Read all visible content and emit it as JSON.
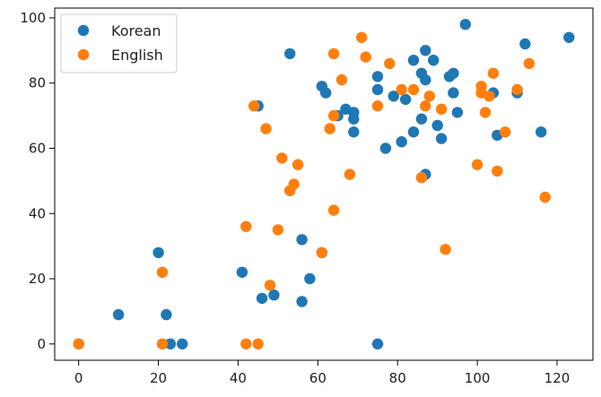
{
  "chart_data": {
    "type": "scatter",
    "title": "",
    "xlabel": "",
    "ylabel": "",
    "xlim": [
      -6,
      129
    ],
    "ylim": [
      -5,
      103
    ],
    "xticks": [
      0,
      20,
      40,
      60,
      80,
      100,
      120
    ],
    "yticks": [
      0,
      20,
      40,
      60,
      80,
      100
    ],
    "grid": false,
    "legend_position": "top-left",
    "series": [
      {
        "name": "Korean",
        "color": "#1f77b4",
        "points": [
          [
            0,
            0
          ],
          [
            10,
            9
          ],
          [
            20,
            28
          ],
          [
            22,
            9
          ],
          [
            23,
            0
          ],
          [
            26,
            0
          ],
          [
            41,
            22
          ],
          [
            45,
            73
          ],
          [
            46,
            14
          ],
          [
            49,
            15
          ],
          [
            53,
            89
          ],
          [
            56,
            32
          ],
          [
            56,
            13
          ],
          [
            58,
            20
          ],
          [
            61,
            28
          ],
          [
            61,
            79
          ],
          [
            62,
            77
          ],
          [
            65,
            70
          ],
          [
            67,
            72
          ],
          [
            69,
            71
          ],
          [
            69,
            65
          ],
          [
            69,
            69
          ],
          [
            75,
            82
          ],
          [
            75,
            78
          ],
          [
            75,
            0
          ],
          [
            77,
            60
          ],
          [
            79,
            76
          ],
          [
            81,
            62
          ],
          [
            82,
            75
          ],
          [
            84,
            87
          ],
          [
            84,
            65
          ],
          [
            86,
            83
          ],
          [
            86,
            69
          ],
          [
            87,
            90
          ],
          [
            87,
            81
          ],
          [
            87,
            52
          ],
          [
            89,
            87
          ],
          [
            90,
            67
          ],
          [
            91,
            63
          ],
          [
            93,
            82
          ],
          [
            94,
            77
          ],
          [
            94,
            83
          ],
          [
            95,
            71
          ],
          [
            97,
            98
          ],
          [
            104,
            77
          ],
          [
            105,
            64
          ],
          [
            110,
            77
          ],
          [
            112,
            92
          ],
          [
            116,
            65
          ],
          [
            123,
            94
          ]
        ]
      },
      {
        "name": "English",
        "color": "#ff7f0e",
        "points": [
          [
            0,
            0
          ],
          [
            21,
            22
          ],
          [
            21,
            0
          ],
          [
            42,
            36
          ],
          [
            42,
            0
          ],
          [
            44,
            73
          ],
          [
            45,
            0
          ],
          [
            47,
            66
          ],
          [
            48,
            18
          ],
          [
            50,
            35
          ],
          [
            51,
            57
          ],
          [
            53,
            47
          ],
          [
            54,
            49
          ],
          [
            55,
            55
          ],
          [
            61,
            28
          ],
          [
            63,
            66
          ],
          [
            64,
            89
          ],
          [
            64,
            41
          ],
          [
            64,
            70
          ],
          [
            66,
            81
          ],
          [
            68,
            52
          ],
          [
            71,
            94
          ],
          [
            72,
            88
          ],
          [
            75,
            73
          ],
          [
            78,
            86
          ],
          [
            81,
            78
          ],
          [
            84,
            78
          ],
          [
            86,
            51
          ],
          [
            87,
            73
          ],
          [
            88,
            76
          ],
          [
            91,
            72
          ],
          [
            92,
            29
          ],
          [
            100,
            55
          ],
          [
            101,
            77
          ],
          [
            101,
            79
          ],
          [
            102,
            71
          ],
          [
            103,
            76
          ],
          [
            104,
            83
          ],
          [
            105,
            53
          ],
          [
            107,
            65
          ],
          [
            110,
            78
          ],
          [
            113,
            86
          ],
          [
            117,
            45
          ]
        ]
      }
    ]
  }
}
